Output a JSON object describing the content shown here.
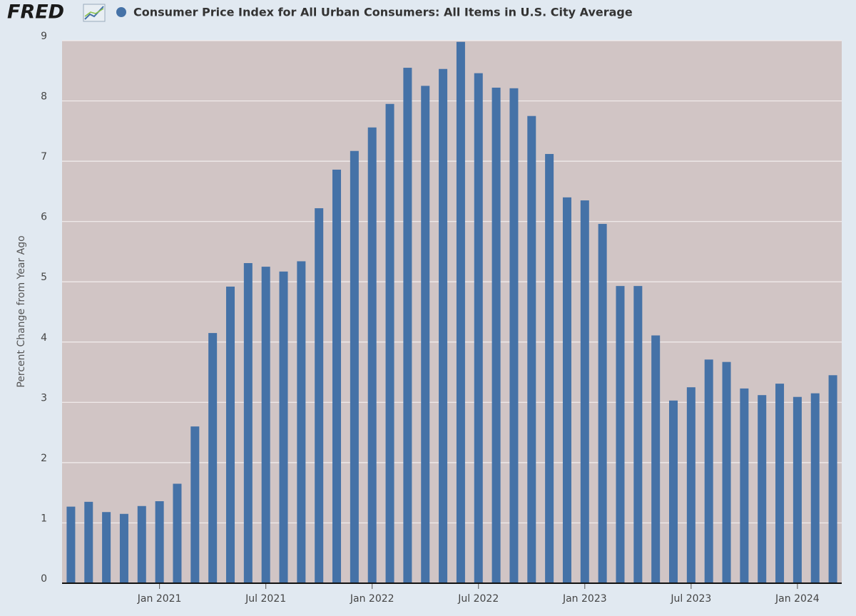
{
  "logo": "FRED",
  "chart_data": {
    "type": "bar",
    "title": "Consumer Price Index for All Urban Consumers: All Items in U.S. City Average",
    "y_label": "Percent Change from Year Ago",
    "categories": [
      null,
      null,
      null,
      null,
      null,
      "Jan 2021",
      null,
      null,
      null,
      null,
      null,
      "Jul 2021",
      null,
      null,
      null,
      null,
      null,
      "Jan 2022",
      null,
      null,
      null,
      null,
      null,
      "Jul 2022",
      null,
      null,
      null,
      null,
      null,
      "Jan 2023",
      null,
      null,
      null,
      null,
      null,
      "Jul 2023",
      null,
      null,
      null,
      null,
      null,
      "Jan 2024",
      null,
      null
    ],
    "values": [
      1.27,
      1.35,
      1.18,
      1.15,
      1.28,
      1.36,
      1.65,
      2.6,
      4.15,
      4.92,
      5.31,
      5.25,
      5.17,
      5.34,
      6.22,
      6.86,
      7.17,
      7.56,
      7.95,
      8.55,
      8.25,
      8.53,
      8.98,
      8.46,
      8.22,
      8.21,
      7.75,
      7.12,
      6.4,
      6.35,
      5.96,
      4.93,
      4.93,
      4.11,
      3.03,
      3.25,
      3.71,
      3.67,
      3.23,
      3.12,
      3.31,
      3.09,
      3.15,
      3.45
    ],
    "color": "#4572a7",
    "ylim": [
      0,
      9
    ],
    "yticks": [
      0,
      1,
      2,
      3,
      4,
      5,
      6,
      7,
      8,
      9
    ],
    "grid": true
  }
}
